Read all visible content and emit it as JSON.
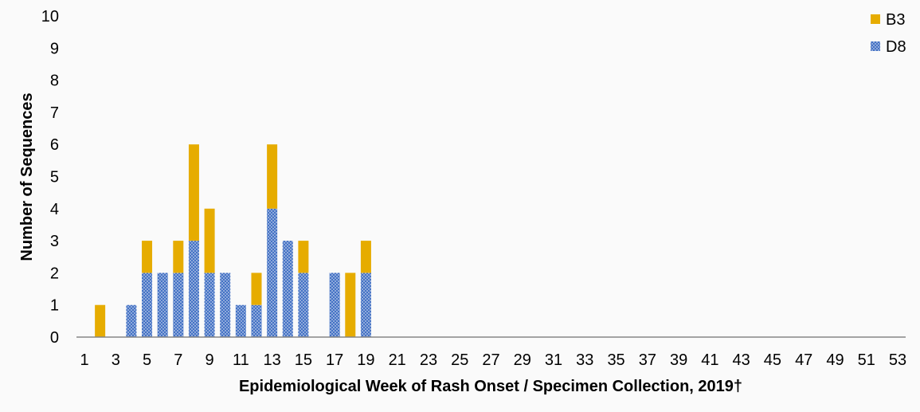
{
  "chart_data": {
    "type": "bar",
    "stacked": true,
    "xlabel": "Epidemiological Week of Rash Onset / Specimen Collection, 2019†",
    "ylabel": "Number of Sequences",
    "ylim": [
      0,
      10
    ],
    "yticks": [
      "0",
      "1",
      "2",
      "3",
      "4",
      "5",
      "6",
      "7",
      "8",
      "9",
      "10"
    ],
    "x_range": [
      1,
      53
    ],
    "xticks": [
      "1",
      "3",
      "5",
      "7",
      "9",
      "11",
      "13",
      "15",
      "17",
      "19",
      "21",
      "23",
      "25",
      "27",
      "29",
      "31",
      "33",
      "35",
      "37",
      "39",
      "41",
      "43",
      "45",
      "47",
      "49",
      "51",
      "53"
    ],
    "grid": false,
    "legend_position": "top-right",
    "categories": [
      1,
      2,
      3,
      4,
      5,
      6,
      7,
      8,
      9,
      10,
      11,
      12,
      13,
      14,
      15,
      16,
      17,
      18,
      19
    ],
    "series": [
      {
        "name": "D8",
        "color": "#4472c4",
        "pattern": "dotted",
        "values": [
          0,
          0,
          0,
          1,
          2,
          2,
          2,
          3,
          2,
          2,
          1,
          1,
          4,
          3,
          2,
          0,
          2,
          0,
          2
        ]
      },
      {
        "name": "B3",
        "color": "#e6ac00",
        "values": [
          0,
          1,
          0,
          0,
          1,
          0,
          1,
          3,
          2,
          0,
          0,
          1,
          2,
          0,
          1,
          0,
          0,
          2,
          1
        ]
      }
    ],
    "legend_order": [
      "B3",
      "D8"
    ]
  }
}
